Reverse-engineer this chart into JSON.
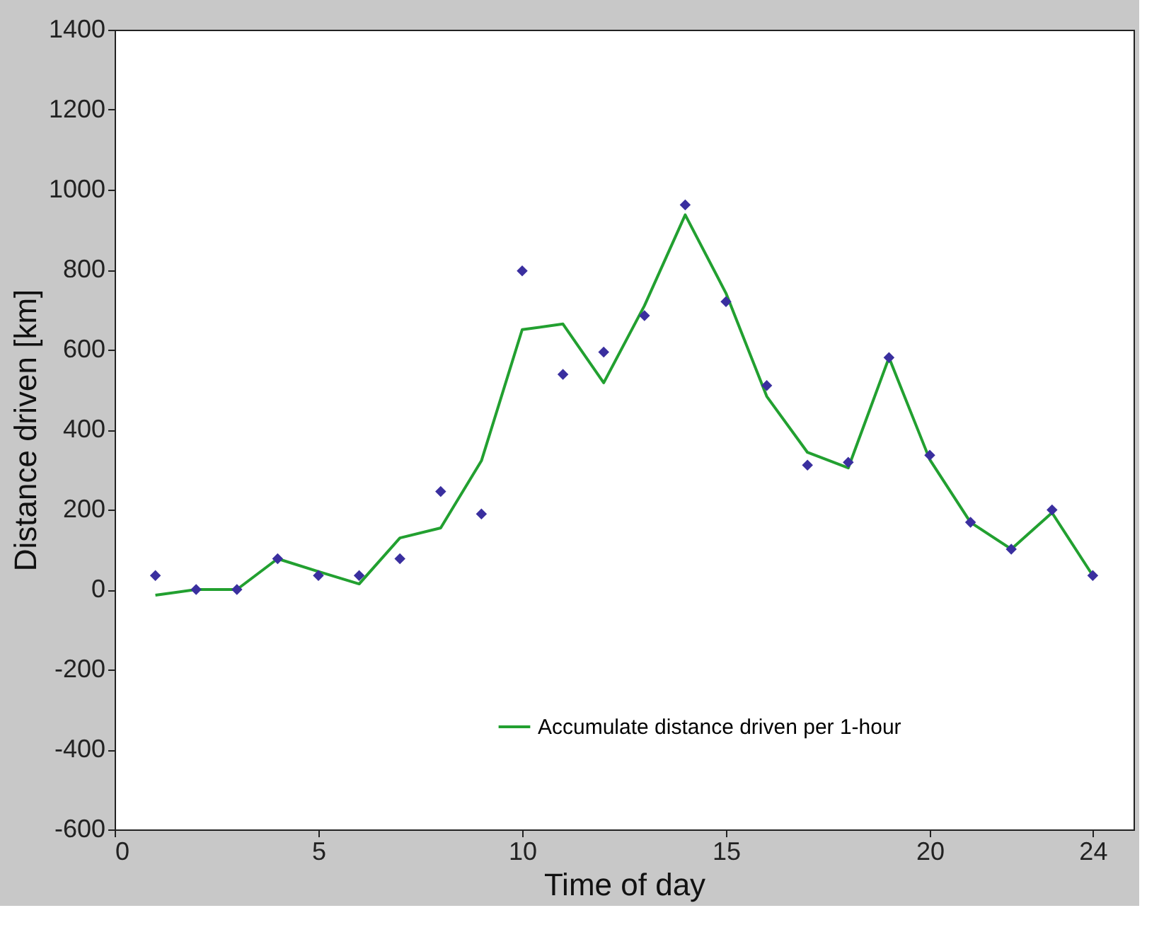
{
  "chart_data": {
    "type": "line",
    "xlabel": "Time of day",
    "ylabel": "Distance driven [km]",
    "x": [
      1,
      2,
      3,
      4,
      5,
      6,
      7,
      8,
      9,
      10,
      11,
      12,
      13,
      14,
      15,
      16,
      17,
      18,
      19,
      20,
      21,
      22,
      23,
      24
    ],
    "series": [
      {
        "type": "line",
        "name": "Accumulate distance driven per 1-hour",
        "color": "#22a030",
        "marker": "none",
        "values": [
          -14,
          0,
          0,
          77,
          45,
          14,
          129,
          154,
          322,
          650,
          664,
          517,
          710,
          937,
          741,
          483,
          343,
          304,
          580,
          325,
          168,
          101,
          192,
          35
        ]
      },
      {
        "type": "scatter",
        "color": "#3a2f9f",
        "marker": "diamond",
        "values": [
          35,
          0,
          0,
          77,
          35,
          35,
          77,
          245,
          189,
          797,
          538,
          594,
          685,
          962,
          720,
          510,
          311,
          318,
          580,
          336,
          168,
          101,
          199,
          35
        ]
      }
    ],
    "xlim": [
      0,
      25
    ],
    "xticks": [
      0,
      5,
      10,
      15,
      20,
      24
    ],
    "ylim": [
      -600,
      1400
    ],
    "yticks": [
      -600,
      -400,
      -200,
      0,
      200,
      400,
      600,
      800,
      1000,
      1200,
      1400
    ],
    "grid": false,
    "legend": "bottom right"
  }
}
